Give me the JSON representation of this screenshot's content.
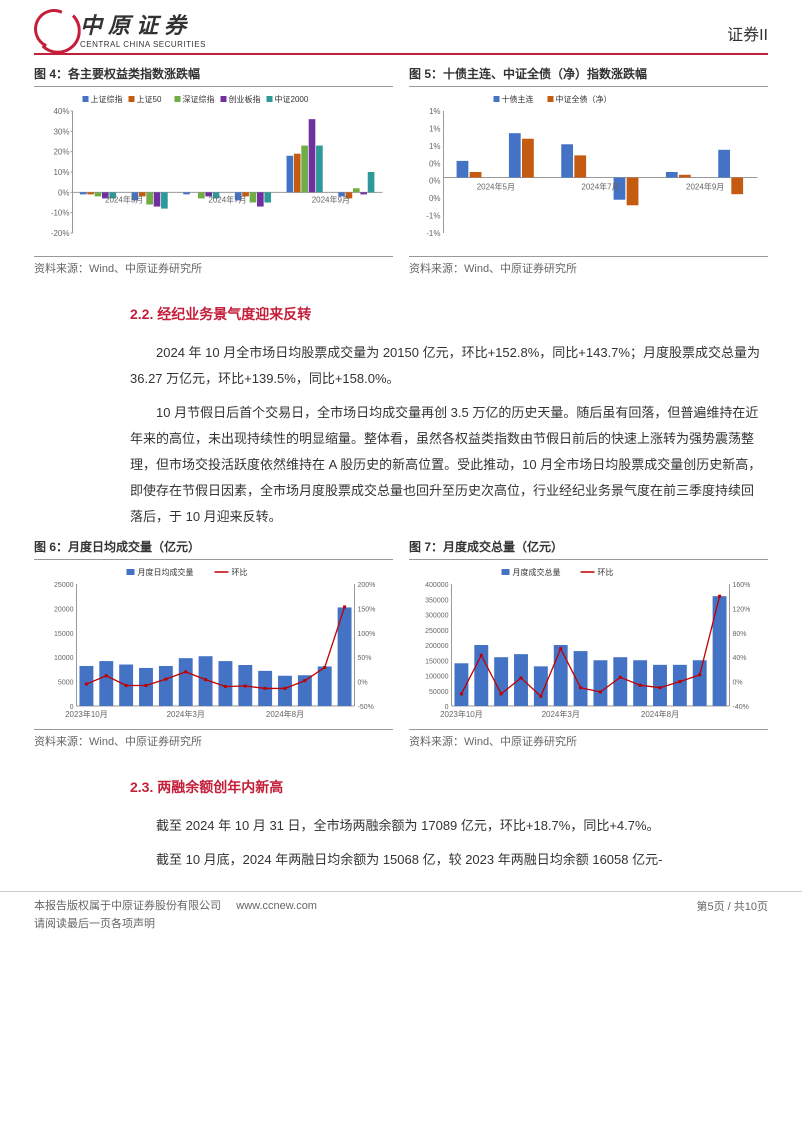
{
  "header": {
    "logo_cn": "中原证券",
    "logo_en": "CENTRAL CHINA SECURITIES",
    "right_label": "证券II"
  },
  "chart4": {
    "title": "图 4：各主要权益类指数涨跌幅",
    "type": "bar",
    "legend": [
      "上证综指",
      "上证50",
      "深证综指",
      "创业板指",
      "中证2000"
    ],
    "legend_colors": [
      "#4472c4",
      "#c55a11",
      "#70ad47",
      "#7030a0",
      "#2e9999"
    ],
    "x_labels": [
      "2024年5月",
      "2024年7月",
      "2024年9月"
    ],
    "ylim": [
      -20,
      40
    ],
    "ytick_step": 10,
    "y_unit": "%",
    "series": [
      {
        "month": "2024年5月",
        "values": [
          -1,
          -1,
          -2,
          -3,
          -3
        ]
      },
      {
        "month": "2024年6月",
        "values": [
          -4,
          -2,
          -6,
          -7,
          -8
        ]
      },
      {
        "month": "2024年7月",
        "values": [
          -1,
          0,
          -3,
          -2,
          -3
        ]
      },
      {
        "month": "2024年8月",
        "values": [
          -4,
          -2,
          -5,
          -7,
          -5
        ]
      },
      {
        "month": "2024年9月",
        "values": [
          18,
          19,
          23,
          36,
          23
        ]
      },
      {
        "month": "2024年10月",
        "values": [
          -2,
          -3,
          2,
          -1,
          10
        ]
      }
    ],
    "source": "资料来源：Wind、中原证券研究所"
  },
  "chart5": {
    "title": "图 5：十债主连、中证全债（净）指数涨跌幅",
    "type": "bar",
    "legend": [
      "十债主连",
      "中证全债（净）"
    ],
    "legend_colors": [
      "#4472c4",
      "#c55a11"
    ],
    "x_labels": [
      "2024年5月",
      "2024年7月",
      "2024年9月"
    ],
    "ylim": [
      -1,
      1.2
    ],
    "yticks": [
      "-1%",
      "-1%",
      "0%",
      "0%",
      "0%",
      "1%",
      "1%",
      "1%"
    ],
    "series": [
      {
        "month": "2024年5月",
        "values": [
          0.3,
          0.1
        ]
      },
      {
        "month": "2024年6月",
        "values": [
          0.8,
          0.7
        ]
      },
      {
        "month": "2024年7月",
        "values": [
          0.6,
          0.4
        ]
      },
      {
        "month": "2024年8月",
        "values": [
          -0.4,
          -0.5
        ]
      },
      {
        "month": "2024年9月",
        "values": [
          0.1,
          0.05
        ]
      },
      {
        "month": "2024年10月",
        "values": [
          0.5,
          -0.3
        ]
      }
    ],
    "source": "资料来源：Wind、中原证券研究所"
  },
  "section_22": {
    "title": "2.2. 经纪业务景气度迎来反转",
    "p1": "2024 年 10 月全市场日均股票成交量为 20150 亿元，环比+152.8%，同比+143.7%；月度股票成交总量为 36.27 万亿元，环比+139.5%，同比+158.0%。",
    "p2": "10 月节假日后首个交易日，全市场日均成交量再创 3.5 万亿的历史天量。随后虽有回落，但普遍维持在近年来的高位，未出现持续性的明显缩量。整体看，虽然各权益类指数由节假日前后的快速上涨转为强势震荡整理，但市场交投活跃度依然维持在 A 股历史的新高位置。受此推动，10 月全市场日均股票成交量创历史新高，即使存在节假日因素，全市场月度股票成交总量也回升至历史次高位，行业经纪业务景气度在前三季度持续回落后，于 10 月迎来反转。"
  },
  "chart6": {
    "title": "图 6：月度日均成交量（亿元）",
    "type": "bar_line",
    "legend_bar": "月度日均成交量",
    "legend_line": "环比",
    "bar_color": "#4472c4",
    "line_color": "#c00000",
    "x_labels": [
      "2023年10月",
      "2024年3月",
      "2024年8月"
    ],
    "ylim_left": [
      0,
      25000
    ],
    "ytick_left_step": 5000,
    "ylim_right": [
      -50,
      200
    ],
    "ytick_right": [
      "-50%",
      "0%",
      "50%",
      "100%",
      "150%",
      "200%"
    ],
    "bars": [
      8200,
      9200,
      8500,
      7800,
      8200,
      9800,
      10200,
      9200,
      8400,
      7200,
      6200,
      6300,
      8100,
      20200
    ],
    "line": [
      -5,
      12,
      -8,
      -8,
      5,
      20,
      4,
      -10,
      -9,
      -14,
      -14,
      2,
      29,
      153
    ],
    "source": "资料来源：Wind、中原证券研究所"
  },
  "chart7": {
    "title": "图 7：月度成交总量（亿元）",
    "type": "bar_line",
    "legend_bar": "月度成交总量",
    "legend_line": "环比",
    "bar_color": "#4472c4",
    "line_color": "#c00000",
    "x_labels": [
      "2023年10月",
      "2024年3月",
      "2024年8月"
    ],
    "ylim_left": [
      0,
      400000
    ],
    "ytick_left_step": 50000,
    "ylim_right": [
      -40,
      160
    ],
    "ytick_right": [
      "-40%",
      "0%",
      "40%",
      "80%",
      "120%",
      "160%"
    ],
    "bars": [
      140000,
      200000,
      160000,
      170000,
      130000,
      200000,
      180000,
      150000,
      160000,
      150000,
      135000,
      135000,
      150000,
      360000
    ],
    "line": [
      -20,
      43,
      -20,
      6,
      -24,
      54,
      -10,
      -17,
      7,
      -6,
      -10,
      0,
      11,
      140
    ],
    "source": "资料来源：Wind、中原证券研究所"
  },
  "section_23": {
    "title": "2.3. 两融余额创年内新高",
    "p1": "截至 2024 年 10 月 31 日，全市场两融余额为 17089 亿元，环比+18.7%，同比+4.7%。",
    "p2": "截至 10 月底，2024 年两融日均余额为 15068 亿，较 2023 年两融日均余额 16058 亿元-"
  },
  "footer": {
    "line1": "本报告版权属于中原证券股份有限公司",
    "url": "www.ccnew.com",
    "line2": "请阅读最后一页各项声明",
    "page": "第5页  / 共10页"
  }
}
